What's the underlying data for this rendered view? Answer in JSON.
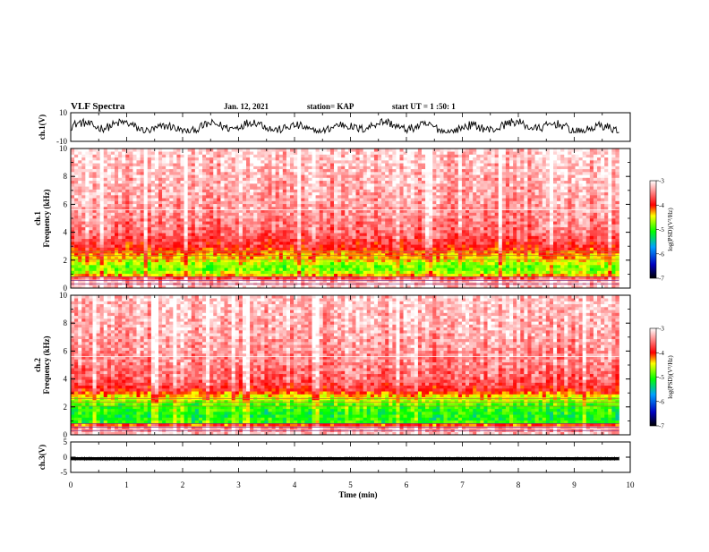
{
  "header": {
    "title": "VLF Spectra",
    "date": "Jan. 12, 2021",
    "station": "station= KAP",
    "start": "start  UT =  1 :50: 1"
  },
  "chart_data": [
    {
      "type": "line",
      "panel": "ch1-waveform",
      "ylabel": "ch.1(V)",
      "ylim": [
        -10,
        10
      ],
      "ytick_labels": [
        "10",
        "-10"
      ],
      "xlim": [
        0,
        10
      ],
      "x_range_data": [
        0,
        9.8
      ],
      "series": [
        {
          "x_range": [
            0,
            9.8
          ],
          "y_band": [
            -4,
            6
          ],
          "typical": [
            -2,
            2
          ]
        }
      ]
    },
    {
      "type": "heatmap",
      "panel": "ch1-spectrogram",
      "ylabel": "ch.1\nFrequency (kHz)",
      "ylabel_lines": [
        "ch.1",
        "Frequency (kHz)"
      ],
      "ylim": [
        0,
        10
      ],
      "ytick_labels": [
        "0",
        "2",
        "4",
        "6",
        "8",
        "10"
      ],
      "xlim": [
        0,
        10
      ],
      "x_range_data": [
        0,
        9.8
      ],
      "level_profile_by_freq_kHz": [
        [
          0.0,
          -3.2
        ],
        [
          0.6,
          -3.3
        ],
        [
          1.0,
          -4.6
        ],
        [
          1.5,
          -4.9
        ],
        [
          2.0,
          -4.5
        ],
        [
          2.5,
          -4.2
        ],
        [
          3.0,
          -3.9
        ],
        [
          4.0,
          -3.6
        ],
        [
          6.0,
          -3.4
        ],
        [
          8.0,
          -3.3
        ],
        [
          10.0,
          -3.2
        ]
      ],
      "colorbar": {
        "label": "log(PSD)(V²/Hz)",
        "range": [
          -7,
          -3
        ],
        "tick_labels": [
          "-3",
          "-4",
          "-5",
          "-6",
          "-7"
        ]
      }
    },
    {
      "type": "heatmap",
      "panel": "ch2-spectrogram",
      "ylabel": "ch.2\nFrequency (kHz)",
      "ylabel_lines": [
        "ch.2",
        "Frequency (kHz)"
      ],
      "ylim": [
        0,
        10
      ],
      "ytick_labels": [
        "0",
        "2",
        "4",
        "6",
        "8",
        "10"
      ],
      "xlim": [
        0,
        10
      ],
      "x_range_data": [
        0,
        9.8
      ],
      "level_profile_by_freq_kHz": [
        [
          0.0,
          -3.2
        ],
        [
          0.6,
          -3.4
        ],
        [
          0.9,
          -5.0
        ],
        [
          1.5,
          -5.1
        ],
        [
          2.2,
          -4.9
        ],
        [
          2.8,
          -4.4
        ],
        [
          3.2,
          -3.9
        ],
        [
          4.0,
          -3.6
        ],
        [
          6.0,
          -3.4
        ],
        [
          8.0,
          -3.3
        ],
        [
          10.0,
          -3.2
        ]
      ],
      "colorbar": {
        "label": "log(PSD)(V²/Hz)",
        "range": [
          -7,
          -3
        ],
        "tick_labels": [
          "-3",
          "-4",
          "-5",
          "-6",
          "-7"
        ]
      }
    },
    {
      "type": "line",
      "panel": "ch3-waveform",
      "ylabel": "ch.3(V)",
      "ylim": [
        -5,
        5
      ],
      "ytick_labels": [
        "5",
        "0",
        "-5"
      ],
      "xlim": [
        0,
        10
      ],
      "x_range_data": [
        0,
        9.8
      ],
      "xlabel": "Time (min)",
      "xtick_labels": [
        "0",
        "1",
        "2",
        "3",
        "4",
        "5",
        "6",
        "7",
        "8",
        "9",
        "10"
      ],
      "series": [
        {
          "x_range": [
            0,
            9.8
          ],
          "y_band": [
            -1,
            0
          ]
        }
      ]
    }
  ],
  "colors": {
    "frame": "#000000",
    "colormap": [
      "#ffffff",
      "#ff0000",
      "#ffff00",
      "#00ff00",
      "#0000ff",
      "#000000"
    ]
  }
}
